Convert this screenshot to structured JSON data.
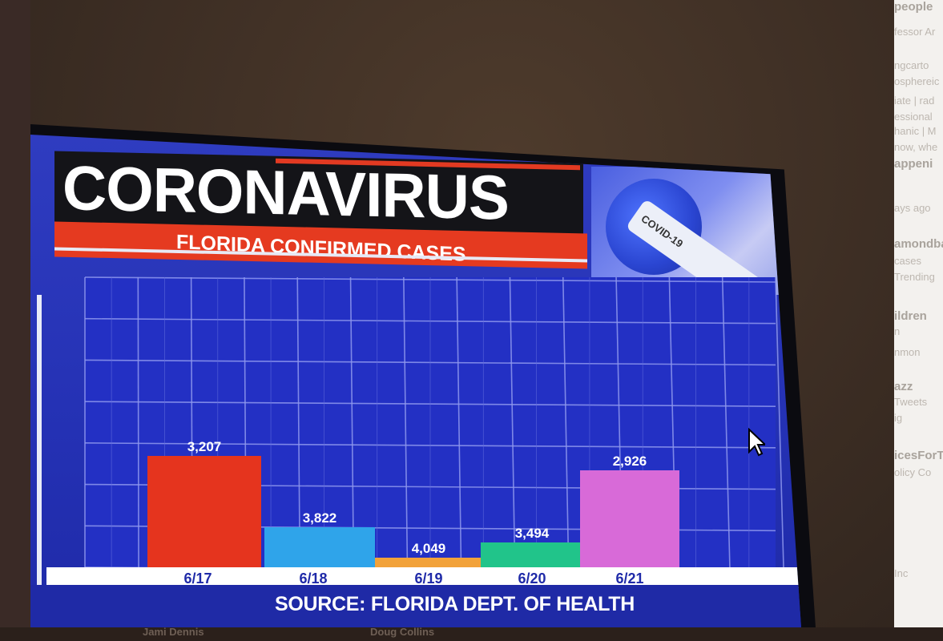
{
  "chart_data": {
    "type": "bar",
    "title": "CORONAVIRUS",
    "subtitle": "FLORIDA CONFIRMED CASES",
    "categories": [
      "6/17",
      "6/18",
      "6/19",
      "6/20",
      "6/21"
    ],
    "values": [
      3207,
      3822,
      4049,
      3494,
      2926
    ],
    "value_labels": [
      "3,207",
      "3,822",
      "4,049",
      "3,494",
      "2,926"
    ],
    "bar_colors": [
      "#e5341e",
      "#2fa4ea",
      "#f2a23a",
      "#21c48a",
      "#d86ad8"
    ],
    "source": "SOURCE: FLORIDA DEPT. OF HEALTH",
    "grid": true,
    "xlabel": "",
    "ylabel": ""
  },
  "screen_badge": "COVID-19",
  "sidebar": {
    "lines": [
      "people",
      "fessor Ar",
      "ngcarto",
      "osphereic",
      "iate | rad",
      "essional",
      "hanic | M",
      "now, whe",
      "appeni",
      "ays ago",
      "amondba",
      "cases",
      "Trending",
      "ildren",
      "n",
      "nmon",
      "azz",
      "Tweets",
      "ig",
      "icesForTr",
      "olicy  Co",
      "Inc"
    ]
  },
  "bottom": {
    "left_name": "Jami Dennis",
    "right_name": "Doug Collins"
  }
}
